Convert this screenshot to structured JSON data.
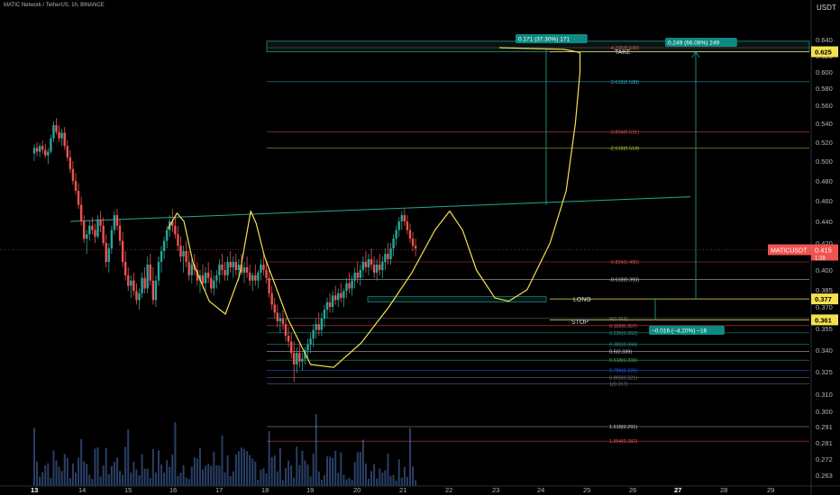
{
  "header": {
    "symbol_line": "MATIC Network / TetherUS, 1h, BINANCE",
    "currency": "USDT"
  },
  "colors": {
    "bull": "#26a69a",
    "bear": "#ef5350",
    "volume": "#2a3f66",
    "trendline": "#26a69a",
    "sketch": "#f5e14f",
    "label_yellow": "#f5e14f",
    "label_red": "#ef5350",
    "label_teal": "#0d8a82"
  },
  "chart_data": {
    "type": "candlestick",
    "x_ticks": [
      "13",
      "14",
      "15",
      "16",
      "17",
      "18",
      "19",
      "20",
      "21",
      "22",
      "23",
      "24",
      "25",
      "26",
      "27",
      "28",
      "29"
    ],
    "y_ticks": [
      "0.640",
      "0.620",
      "0.600",
      "0.580",
      "0.560",
      "0.540",
      "0.520",
      "0.500",
      "0.480",
      "0.460",
      "0.440",
      "0.420",
      "0.400",
      "0.385",
      "0.370",
      "0.355",
      "0.340",
      "0.325",
      "0.310",
      "0.300",
      "0.291",
      "0.281",
      "0.272",
      "0.263"
    ],
    "price_labels": [
      {
        "text": "0.625",
        "price": 0.625,
        "style": "yellow"
      },
      {
        "text": "0.377",
        "price": 0.377,
        "style": "yellow"
      },
      {
        "text": "0.361",
        "price": 0.361,
        "style": "yellow"
      }
    ],
    "last_price": {
      "symbol": "MATICUSDT",
      "value": "0.415",
      "countdown": "1:28"
    },
    "fib_levels": [
      {
        "label": "-4.236(0.630)",
        "price": 0.63,
        "color": "#ef5350"
      },
      {
        "label": "-3.618(0.588)",
        "price": 0.588,
        "color": "#2bb5c7"
      },
      {
        "label": "-2.854(0.531)",
        "price": 0.531,
        "color": "#ef5350"
      },
      {
        "label": "-2.618(0.514)",
        "price": 0.514,
        "color": "#c8c83a"
      },
      {
        "label": "-0.854(0.406)",
        "price": 0.406,
        "color": "#ef5350"
      },
      {
        "label": "-0.618(0.393)",
        "price": 0.393,
        "color": "#d1d4dc"
      },
      {
        "label": "0(0.362)",
        "price": 0.362,
        "color": "#787b86"
      },
      {
        "label": "0.118(0.357)",
        "price": 0.357,
        "color": "#ef5350"
      },
      {
        "label": "0.236(0.352)",
        "price": 0.352,
        "color": "#26a69a"
      },
      {
        "label": "0.382(0.344)",
        "price": 0.344,
        "color": "#26a69a"
      },
      {
        "label": "0.5(0.339)",
        "price": 0.339,
        "color": "#d1d4dc"
      },
      {
        "label": "0.618(0.333)",
        "price": 0.333,
        "color": "#4caf50"
      },
      {
        "label": "0.786(0.326)",
        "price": 0.326,
        "color": "#2962ff"
      },
      {
        "label": "0.893(0.321)",
        "price": 0.321,
        "color": "#787b86"
      },
      {
        "label": "1(0.317)",
        "price": 0.317,
        "color": "#787b86"
      },
      {
        "label": "1.618(0.291)",
        "price": 0.291,
        "color": "#d1d4dc"
      },
      {
        "label": "1.854(0.282)",
        "price": 0.282,
        "color": "#ef5350"
      }
    ],
    "annotations": {
      "take": "TAKE",
      "long": "LONG",
      "stop": "STOP",
      "measure_1": "0.171 (37.30%) 171",
      "measure_2": "0.249 (66.08%) 249",
      "measure_3": "−0.016 (−4.20%) −16"
    },
    "candles": [
      {
        "x": 0.0,
        "o": 0.508,
        "h": 0.518,
        "l": 0.5,
        "c": 0.514
      },
      {
        "x": 0.06,
        "o": 0.514,
        "h": 0.52,
        "l": 0.505,
        "c": 0.51
      },
      {
        "x": 0.12,
        "o": 0.51,
        "h": 0.519,
        "l": 0.504,
        "c": 0.516
      },
      {
        "x": 0.18,
        "o": 0.516,
        "h": 0.522,
        "l": 0.508,
        "c": 0.512
      },
      {
        "x": 0.24,
        "o": 0.512,
        "h": 0.518,
        "l": 0.503,
        "c": 0.506
      },
      {
        "x": 0.3,
        "o": 0.506,
        "h": 0.514,
        "l": 0.497,
        "c": 0.51
      },
      {
        "x": 0.36,
        "o": 0.51,
        "h": 0.528,
        "l": 0.508,
        "c": 0.524
      },
      {
        "x": 0.42,
        "o": 0.524,
        "h": 0.542,
        "l": 0.52,
        "c": 0.538
      },
      {
        "x": 0.48,
        "o": 0.538,
        "h": 0.546,
        "l": 0.528,
        "c": 0.531
      },
      {
        "x": 0.54,
        "o": 0.531,
        "h": 0.538,
        "l": 0.52,
        "c": 0.524
      },
      {
        "x": 0.6,
        "o": 0.524,
        "h": 0.534,
        "l": 0.516,
        "c": 0.53
      },
      {
        "x": 0.66,
        "o": 0.53,
        "h": 0.536,
        "l": 0.512,
        "c": 0.516
      },
      {
        "x": 0.72,
        "o": 0.516,
        "h": 0.522,
        "l": 0.5,
        "c": 0.504
      },
      {
        "x": 0.78,
        "o": 0.504,
        "h": 0.512,
        "l": 0.488,
        "c": 0.492
      },
      {
        "x": 0.84,
        "o": 0.492,
        "h": 0.5,
        "l": 0.476,
        "c": 0.48
      },
      {
        "x": 0.9,
        "o": 0.48,
        "h": 0.488,
        "l": 0.466,
        "c": 0.47
      },
      {
        "x": 0.96,
        "o": 0.47,
        "h": 0.478,
        "l": 0.452,
        "c": 0.456
      },
      {
        "x": 1.02,
        "o": 0.456,
        "h": 0.464,
        "l": 0.436,
        "c": 0.44
      },
      {
        "x": 1.08,
        "o": 0.44,
        "h": 0.446,
        "l": 0.42,
        "c": 0.424
      },
      {
        "x": 1.14,
        "o": 0.424,
        "h": 0.432,
        "l": 0.412,
        "c": 0.428
      },
      {
        "x": 1.2,
        "o": 0.428,
        "h": 0.44,
        "l": 0.422,
        "c": 0.436
      },
      {
        "x": 1.26,
        "o": 0.436,
        "h": 0.444,
        "l": 0.428,
        "c": 0.432
      },
      {
        "x": 1.32,
        "o": 0.432,
        "h": 0.438,
        "l": 0.42,
        "c": 0.426
      },
      {
        "x": 1.38,
        "o": 0.426,
        "h": 0.446,
        "l": 0.424,
        "c": 0.442
      },
      {
        "x": 1.44,
        "o": 0.442,
        "h": 0.45,
        "l": 0.43,
        "c": 0.436
      },
      {
        "x": 1.5,
        "o": 0.436,
        "h": 0.444,
        "l": 0.418,
        "c": 0.42
      },
      {
        "x": 1.56,
        "o": 0.42,
        "h": 0.428,
        "l": 0.402,
        "c": 0.406
      },
      {
        "x": 1.62,
        "o": 0.406,
        "h": 0.42,
        "l": 0.398,
        "c": 0.416
      },
      {
        "x": 1.68,
        "o": 0.416,
        "h": 0.436,
        "l": 0.412,
        "c": 0.432
      },
      {
        "x": 1.74,
        "o": 0.432,
        "h": 0.45,
        "l": 0.428,
        "c": 0.446
      },
      {
        "x": 1.8,
        "o": 0.446,
        "h": 0.452,
        "l": 0.432,
        "c": 0.436
      },
      {
        "x": 1.86,
        "o": 0.436,
        "h": 0.442,
        "l": 0.418,
        "c": 0.422
      },
      {
        "x": 1.92,
        "o": 0.422,
        "h": 0.43,
        "l": 0.402,
        "c": 0.406
      },
      {
        "x": 1.98,
        "o": 0.406,
        "h": 0.414,
        "l": 0.392,
        "c": 0.396
      },
      {
        "x": 2.04,
        "o": 0.396,
        "h": 0.402,
        "l": 0.384,
        "c": 0.388
      },
      {
        "x": 2.1,
        "o": 0.388,
        "h": 0.396,
        "l": 0.378,
        "c": 0.392
      },
      {
        "x": 2.16,
        "o": 0.392,
        "h": 0.398,
        "l": 0.38,
        "c": 0.384
      },
      {
        "x": 2.22,
        "o": 0.384,
        "h": 0.39,
        "l": 0.372,
        "c": 0.376
      },
      {
        "x": 2.28,
        "o": 0.376,
        "h": 0.386,
        "l": 0.368,
        "c": 0.382
      },
      {
        "x": 2.34,
        "o": 0.382,
        "h": 0.398,
        "l": 0.378,
        "c": 0.394
      },
      {
        "x": 2.4,
        "o": 0.394,
        "h": 0.402,
        "l": 0.382,
        "c": 0.386
      },
      {
        "x": 2.46,
        "o": 0.386,
        "h": 0.41,
        "l": 0.382,
        "c": 0.404
      },
      {
        "x": 2.52,
        "o": 0.404,
        "h": 0.412,
        "l": 0.388,
        "c": 0.392
      },
      {
        "x": 2.58,
        "o": 0.392,
        "h": 0.402,
        "l": 0.372,
        "c": 0.376
      },
      {
        "x": 2.64,
        "o": 0.376,
        "h": 0.396,
        "l": 0.37,
        "c": 0.392
      },
      {
        "x": 2.7,
        "o": 0.392,
        "h": 0.41,
        "l": 0.388,
        "c": 0.406
      },
      {
        "x": 2.76,
        "o": 0.406,
        "h": 0.418,
        "l": 0.398,
        "c": 0.414
      },
      {
        "x": 2.82,
        "o": 0.414,
        "h": 0.426,
        "l": 0.408,
        "c": 0.422
      },
      {
        "x": 2.88,
        "o": 0.422,
        "h": 0.436,
        "l": 0.416,
        "c": 0.432
      },
      {
        "x": 2.94,
        "o": 0.432,
        "h": 0.446,
        "l": 0.426,
        "c": 0.44
      },
      {
        "x": 3.0,
        "o": 0.44,
        "h": 0.452,
        "l": 0.43,
        "c": 0.436
      },
      {
        "x": 3.06,
        "o": 0.436,
        "h": 0.444,
        "l": 0.424,
        "c": 0.428
      },
      {
        "x": 3.12,
        "o": 0.428,
        "h": 0.436,
        "l": 0.414,
        "c": 0.418
      },
      {
        "x": 3.18,
        "o": 0.418,
        "h": 0.426,
        "l": 0.406,
        "c": 0.41
      },
      {
        "x": 3.24,
        "o": 0.41,
        "h": 0.418,
        "l": 0.398,
        "c": 0.414
      },
      {
        "x": 3.3,
        "o": 0.414,
        "h": 0.422,
        "l": 0.402,
        "c": 0.406
      },
      {
        "x": 3.36,
        "o": 0.406,
        "h": 0.414,
        "l": 0.392,
        "c": 0.396
      },
      {
        "x": 3.42,
        "o": 0.396,
        "h": 0.408,
        "l": 0.39,
        "c": 0.404
      },
      {
        "x": 3.48,
        "o": 0.404,
        "h": 0.412,
        "l": 0.396,
        "c": 0.4
      },
      {
        "x": 3.54,
        "o": 0.4,
        "h": 0.406,
        "l": 0.388,
        "c": 0.392
      },
      {
        "x": 3.6,
        "o": 0.392,
        "h": 0.4,
        "l": 0.382,
        "c": 0.396
      },
      {
        "x": 3.66,
        "o": 0.396,
        "h": 0.404,
        "l": 0.386,
        "c": 0.39
      },
      {
        "x": 3.72,
        "o": 0.39,
        "h": 0.402,
        "l": 0.384,
        "c": 0.398
      },
      {
        "x": 3.78,
        "o": 0.398,
        "h": 0.406,
        "l": 0.39,
        "c": 0.394
      },
      {
        "x": 3.84,
        "o": 0.394,
        "h": 0.4,
        "l": 0.382,
        "c": 0.386
      },
      {
        "x": 3.9,
        "o": 0.386,
        "h": 0.396,
        "l": 0.38,
        "c": 0.392
      },
      {
        "x": 3.96,
        "o": 0.392,
        "h": 0.4,
        "l": 0.386,
        "c": 0.396
      },
      {
        "x": 4.02,
        "o": 0.396,
        "h": 0.408,
        "l": 0.39,
        "c": 0.404
      },
      {
        "x": 4.08,
        "o": 0.404,
        "h": 0.412,
        "l": 0.396,
        "c": 0.4
      },
      {
        "x": 4.14,
        "o": 0.4,
        "h": 0.406,
        "l": 0.392,
        "c": 0.396
      },
      {
        "x": 4.2,
        "o": 0.396,
        "h": 0.41,
        "l": 0.392,
        "c": 0.406
      },
      {
        "x": 4.26,
        "o": 0.406,
        "h": 0.414,
        "l": 0.398,
        "c": 0.402
      },
      {
        "x": 4.32,
        "o": 0.402,
        "h": 0.41,
        "l": 0.394,
        "c": 0.406
      },
      {
        "x": 4.38,
        "o": 0.406,
        "h": 0.412,
        "l": 0.396,
        "c": 0.4
      },
      {
        "x": 4.44,
        "o": 0.4,
        "h": 0.408,
        "l": 0.392,
        "c": 0.404
      },
      {
        "x": 4.5,
        "o": 0.404,
        "h": 0.412,
        "l": 0.396,
        "c": 0.398
      },
      {
        "x": 4.56,
        "o": 0.398,
        "h": 0.406,
        "l": 0.39,
        "c": 0.402
      },
      {
        "x": 4.62,
        "o": 0.402,
        "h": 0.41,
        "l": 0.394,
        "c": 0.398
      },
      {
        "x": 4.68,
        "o": 0.398,
        "h": 0.404,
        "l": 0.388,
        "c": 0.392
      },
      {
        "x": 4.74,
        "o": 0.392,
        "h": 0.398,
        "l": 0.384,
        "c": 0.396
      },
      {
        "x": 4.8,
        "o": 0.396,
        "h": 0.404,
        "l": 0.388,
        "c": 0.392
      },
      {
        "x": 4.86,
        "o": 0.392,
        "h": 0.4,
        "l": 0.386,
        "c": 0.398
      },
      {
        "x": 4.92,
        "o": 0.398,
        "h": 0.408,
        "l": 0.392,
        "c": 0.404
      },
      {
        "x": 4.98,
        "o": 0.404,
        "h": 0.412,
        "l": 0.396,
        "c": 0.4
      },
      {
        "x": 5.04,
        "o": 0.4,
        "h": 0.406,
        "l": 0.39,
        "c": 0.394
      },
      {
        "x": 5.1,
        "o": 0.394,
        "h": 0.4,
        "l": 0.378,
        "c": 0.382
      },
      {
        "x": 5.16,
        "o": 0.382,
        "h": 0.388,
        "l": 0.368,
        "c": 0.372
      },
      {
        "x": 5.22,
        "o": 0.372,
        "h": 0.378,
        "l": 0.362,
        "c": 0.366
      },
      {
        "x": 5.28,
        "o": 0.366,
        "h": 0.372,
        "l": 0.356,
        "c": 0.36
      },
      {
        "x": 5.34,
        "o": 0.36,
        "h": 0.366,
        "l": 0.352,
        "c": 0.362
      },
      {
        "x": 5.4,
        "o": 0.362,
        "h": 0.368,
        "l": 0.354,
        "c": 0.358
      },
      {
        "x": 5.46,
        "o": 0.358,
        "h": 0.362,
        "l": 0.346,
        "c": 0.35
      },
      {
        "x": 5.52,
        "o": 0.35,
        "h": 0.356,
        "l": 0.342,
        "c": 0.346
      },
      {
        "x": 5.58,
        "o": 0.346,
        "h": 0.352,
        "l": 0.334,
        "c": 0.338
      },
      {
        "x": 5.64,
        "o": 0.338,
        "h": 0.346,
        "l": 0.318,
        "c": 0.33
      },
      {
        "x": 5.7,
        "o": 0.33,
        "h": 0.342,
        "l": 0.324,
        "c": 0.338
      },
      {
        "x": 5.76,
        "o": 0.338,
        "h": 0.344,
        "l": 0.328,
        "c": 0.332
      },
      {
        "x": 5.82,
        "o": 0.332,
        "h": 0.338,
        "l": 0.326,
        "c": 0.334
      },
      {
        "x": 5.88,
        "o": 0.334,
        "h": 0.342,
        "l": 0.33,
        "c": 0.34
      },
      {
        "x": 5.94,
        "o": 0.34,
        "h": 0.348,
        "l": 0.334,
        "c": 0.344
      },
      {
        "x": 6.0,
        "o": 0.344,
        "h": 0.352,
        "l": 0.338,
        "c": 0.348
      },
      {
        "x": 6.06,
        "o": 0.348,
        "h": 0.358,
        "l": 0.342,
        "c": 0.354
      },
      {
        "x": 6.12,
        "o": 0.354,
        "h": 0.362,
        "l": 0.348,
        "c": 0.358
      },
      {
        "x": 6.18,
        "o": 0.358,
        "h": 0.366,
        "l": 0.35,
        "c": 0.354
      },
      {
        "x": 6.24,
        "o": 0.354,
        "h": 0.366,
        "l": 0.35,
        "c": 0.362
      },
      {
        "x": 6.3,
        "o": 0.362,
        "h": 0.372,
        "l": 0.356,
        "c": 0.368
      },
      {
        "x": 6.36,
        "o": 0.368,
        "h": 0.378,
        "l": 0.362,
        "c": 0.374
      },
      {
        "x": 6.42,
        "o": 0.374,
        "h": 0.382,
        "l": 0.366,
        "c": 0.37
      },
      {
        "x": 6.48,
        "o": 0.37,
        "h": 0.384,
        "l": 0.366,
        "c": 0.38
      },
      {
        "x": 6.54,
        "o": 0.38,
        "h": 0.388,
        "l": 0.372,
        "c": 0.376
      },
      {
        "x": 6.6,
        "o": 0.376,
        "h": 0.386,
        "l": 0.37,
        "c": 0.382
      },
      {
        "x": 6.66,
        "o": 0.382,
        "h": 0.39,
        "l": 0.374,
        "c": 0.378
      },
      {
        "x": 6.72,
        "o": 0.378,
        "h": 0.386,
        "l": 0.37,
        "c": 0.384
      },
      {
        "x": 6.78,
        "o": 0.384,
        "h": 0.394,
        "l": 0.378,
        "c": 0.39
      },
      {
        "x": 6.84,
        "o": 0.39,
        "h": 0.398,
        "l": 0.382,
        "c": 0.386
      },
      {
        "x": 6.9,
        "o": 0.386,
        "h": 0.396,
        "l": 0.38,
        "c": 0.392
      },
      {
        "x": 6.96,
        "o": 0.392,
        "h": 0.402,
        "l": 0.386,
        "c": 0.398
      },
      {
        "x": 7.02,
        "o": 0.398,
        "h": 0.406,
        "l": 0.39,
        "c": 0.394
      },
      {
        "x": 7.08,
        "o": 0.394,
        "h": 0.404,
        "l": 0.388,
        "c": 0.4
      },
      {
        "x": 7.14,
        "o": 0.4,
        "h": 0.41,
        "l": 0.394,
        "c": 0.406
      },
      {
        "x": 7.2,
        "o": 0.406,
        "h": 0.414,
        "l": 0.398,
        "c": 0.402
      },
      {
        "x": 7.26,
        "o": 0.402,
        "h": 0.412,
        "l": 0.396,
        "c": 0.408
      },
      {
        "x": 7.32,
        "o": 0.408,
        "h": 0.416,
        "l": 0.4,
        "c": 0.404
      },
      {
        "x": 7.38,
        "o": 0.404,
        "h": 0.41,
        "l": 0.394,
        "c": 0.398
      },
      {
        "x": 7.44,
        "o": 0.398,
        "h": 0.408,
        "l": 0.392,
        "c": 0.404
      },
      {
        "x": 7.5,
        "o": 0.404,
        "h": 0.412,
        "l": 0.396,
        "c": 0.4
      },
      {
        "x": 7.56,
        "o": 0.4,
        "h": 0.41,
        "l": 0.394,
        "c": 0.406
      },
      {
        "x": 7.62,
        "o": 0.406,
        "h": 0.416,
        "l": 0.4,
        "c": 0.412
      },
      {
        "x": 7.68,
        "o": 0.412,
        "h": 0.42,
        "l": 0.404,
        "c": 0.408
      },
      {
        "x": 7.74,
        "o": 0.408,
        "h": 0.42,
        "l": 0.404,
        "c": 0.416
      },
      {
        "x": 7.8,
        "o": 0.416,
        "h": 0.428,
        "l": 0.41,
        "c": 0.424
      },
      {
        "x": 7.86,
        "o": 0.424,
        "h": 0.436,
        "l": 0.418,
        "c": 0.432
      },
      {
        "x": 7.92,
        "o": 0.432,
        "h": 0.444,
        "l": 0.426,
        "c": 0.44
      },
      {
        "x": 7.98,
        "o": 0.44,
        "h": 0.45,
        "l": 0.432,
        "c": 0.446
      },
      {
        "x": 8.04,
        "o": 0.446,
        "h": 0.452,
        "l": 0.436,
        "c": 0.44
      },
      {
        "x": 8.1,
        "o": 0.44,
        "h": 0.446,
        "l": 0.428,
        "c": 0.432
      },
      {
        "x": 8.16,
        "o": 0.432,
        "h": 0.438,
        "l": 0.42,
        "c": 0.424
      },
      {
        "x": 8.22,
        "o": 0.424,
        "h": 0.43,
        "l": 0.414,
        "c": 0.418
      },
      {
        "x": 8.28,
        "o": 0.418,
        "h": 0.424,
        "l": 0.41,
        "c": 0.416
      }
    ]
  }
}
